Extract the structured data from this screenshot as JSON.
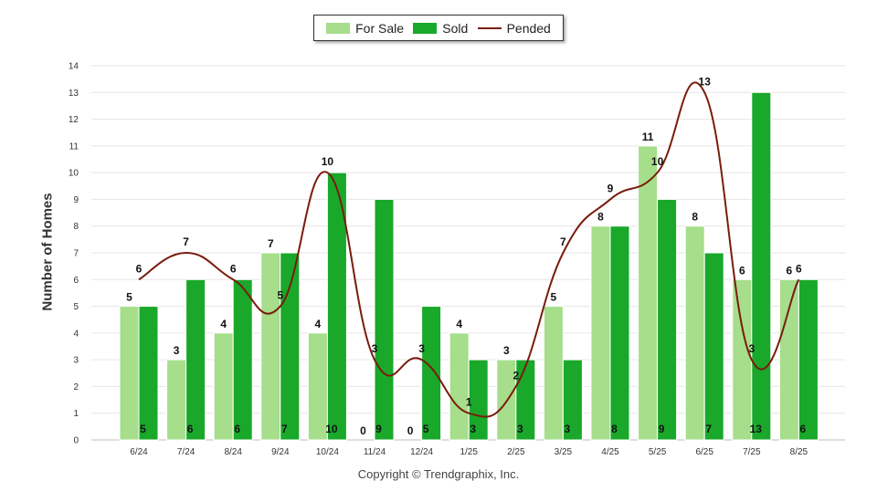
{
  "chart_data": {
    "type": "bar",
    "categories": [
      "6/24",
      "7/24",
      "8/24",
      "9/24",
      "10/24",
      "11/24",
      "12/24",
      "1/25",
      "2/25",
      "3/25",
      "4/25",
      "5/25",
      "6/25",
      "7/25",
      "8/25"
    ],
    "series": [
      {
        "name": "For Sale",
        "type": "bar",
        "color": "#a6de8c",
        "values": [
          5,
          3,
          4,
          7,
          4,
          0,
          0,
          4,
          3,
          5,
          8,
          11,
          8,
          6,
          6
        ]
      },
      {
        "name": "Sold",
        "type": "bar",
        "color": "#19a82a",
        "values": [
          5,
          6,
          6,
          7,
          10,
          9,
          5,
          3,
          3,
          3,
          8,
          9,
          7,
          13,
          6
        ]
      },
      {
        "name": "Pended",
        "type": "line",
        "color": "#7a1c0c",
        "values": [
          6,
          7,
          6,
          5,
          10,
          3,
          3,
          1,
          2,
          7,
          9,
          10,
          13,
          3,
          6
        ]
      }
    ],
    "ylabel": "Number of Homes",
    "xlabel": "",
    "ylim": [
      0,
      14
    ],
    "yticks": [
      0,
      1,
      2,
      3,
      4,
      5,
      6,
      7,
      8,
      9,
      10,
      11,
      12,
      13,
      14
    ],
    "grid": true,
    "legend_position": "top-center"
  },
  "legend": {
    "for_sale": "For Sale",
    "sold": "Sold",
    "pended": "Pended"
  },
  "footer": {
    "copyright": "Copyright © Trendgraphix, Inc."
  }
}
